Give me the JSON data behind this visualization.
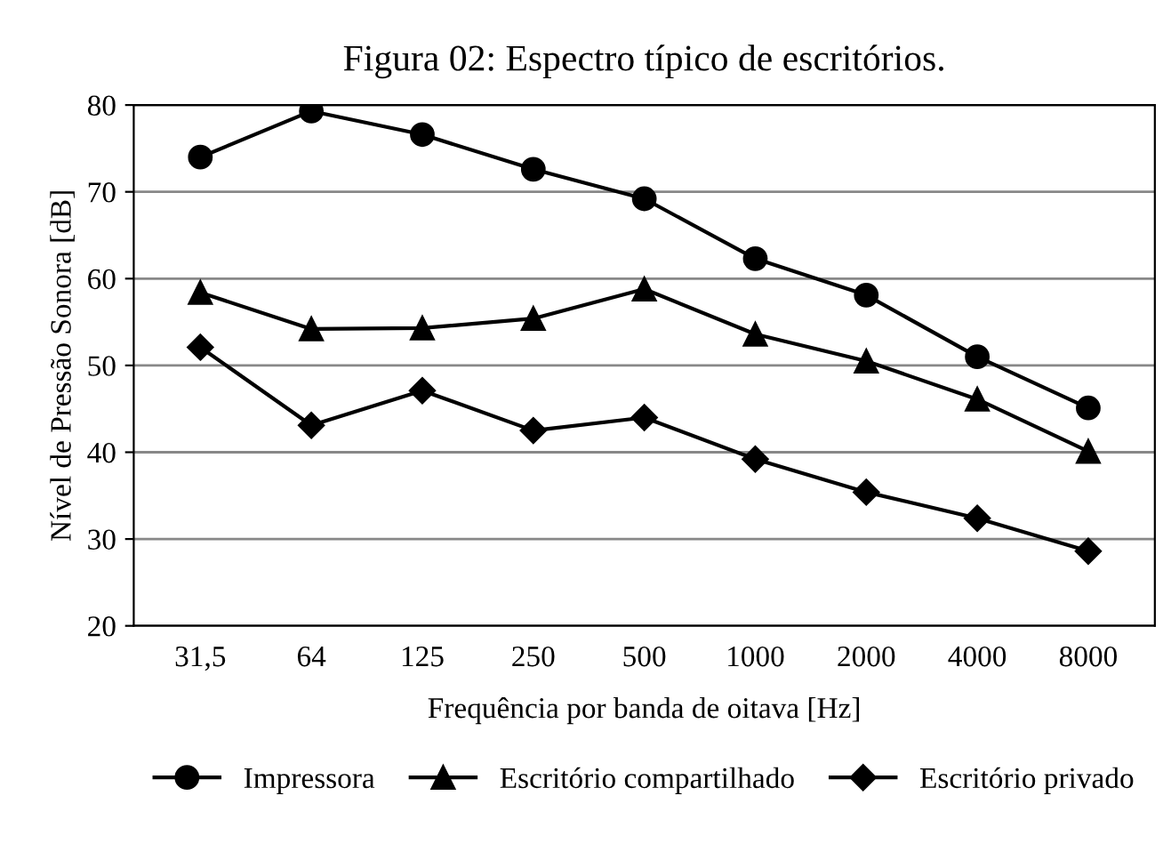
{
  "chart_data": {
    "type": "line",
    "title": "Figura 02: Espectro típico de escritórios.",
    "xlabel": "Frequência por banda de oitava [Hz]",
    "ylabel": "Nível de Pressão Sonora [dB]",
    "categories": [
      "31,5",
      "64",
      "125",
      "250",
      "500",
      "1000",
      "2000",
      "4000",
      "8000"
    ],
    "series": [
      {
        "name": "Impressora",
        "color": "#000000",
        "marker": "circle",
        "values": [
          74,
          79.3,
          76.6,
          72.6,
          69.2,
          62.3,
          58.1,
          51,
          45.1
        ]
      },
      {
        "name": "Escritório compartilhado",
        "color": "#000000",
        "marker": "triangle",
        "values": [
          58.4,
          54.2,
          54.3,
          55.4,
          58.8,
          53.6,
          50.5,
          46.1,
          40.1
        ]
      },
      {
        "name": "Escritório privado",
        "color": "#000000",
        "marker": "diamond",
        "values": [
          52.1,
          43.1,
          47.1,
          42.5,
          44,
          39.2,
          35.4,
          32.4,
          28.6
        ]
      }
    ],
    "ylim": [
      20,
      80
    ],
    "yticks": [
      20,
      30,
      40,
      50,
      60,
      70,
      80
    ],
    "grid": "y",
    "legend": "bottom",
    "line_style": "solid"
  }
}
